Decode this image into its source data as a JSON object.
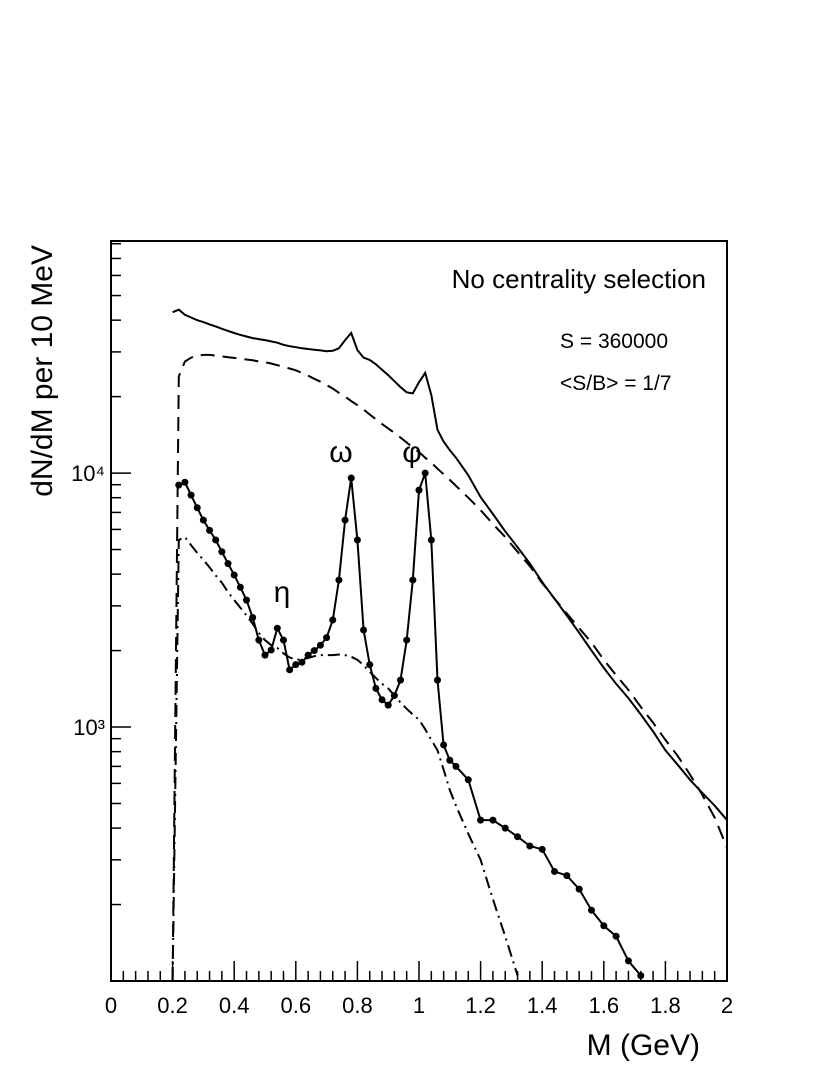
{
  "chart_data": {
    "type": "line",
    "x_label": "M (GeV)",
    "y_label": "dN/dM per 10 MeV",
    "log_y": true,
    "xlim": [
      0,
      2
    ],
    "xticks": [
      0,
      0.2,
      0.4,
      0.6,
      0.8,
      1,
      1.2,
      1.4,
      1.6,
      1.8,
      2
    ],
    "xminor_ticks": [
      0.04,
      0.08,
      0.12,
      0.16,
      0.24,
      0.28,
      0.32,
      0.36,
      0.44,
      0.48,
      0.52,
      0.56,
      0.64,
      0.68,
      0.72,
      0.76,
      0.84,
      0.88,
      0.92,
      0.96,
      1.04,
      1.08,
      1.12,
      1.16,
      1.24,
      1.28,
      1.32,
      1.36,
      1.44,
      1.48,
      1.52,
      1.56,
      1.64,
      1.68,
      1.72,
      1.76,
      1.84,
      1.88,
      1.92,
      1.96
    ],
    "ylim": [
      100,
      82000
    ],
    "yticks": [
      {
        "value": 1000,
        "label": "10³"
      },
      {
        "value": 10000,
        "label": "10⁴"
      }
    ],
    "yminor_ticks": [
      200,
      300,
      400,
      500,
      600,
      700,
      800,
      900,
      2000,
      3000,
      4000,
      5000,
      6000,
      7000,
      8000,
      9000,
      20000,
      30000,
      40000,
      50000,
      60000,
      70000,
      80000
    ],
    "annotations": [
      "No centrality selection",
      "S = 360000",
      "<S/B> = 1/7",
      "η",
      "ω",
      "φ"
    ],
    "x": [
      0.2,
      0.22,
      0.24,
      0.26,
      0.28,
      0.3,
      0.32,
      0.34,
      0.36,
      0.38,
      0.4,
      0.42,
      0.44,
      0.46,
      0.48,
      0.5,
      0.52,
      0.54,
      0.56,
      0.58,
      0.6,
      0.62,
      0.64,
      0.66,
      0.68,
      0.7,
      0.72,
      0.74,
      0.76,
      0.78,
      0.8,
      0.82,
      0.84,
      0.86,
      0.88,
      0.9,
      0.92,
      0.94,
      0.96,
      0.98,
      1.0,
      1.02,
      1.04,
      1.06,
      1.08,
      1.1,
      1.12,
      1.16,
      1.2,
      1.24,
      1.28,
      1.32,
      1.36,
      1.4,
      1.44,
      1.48,
      1.52,
      1.56,
      1.6,
      1.64,
      1.68,
      1.72,
      1.76,
      1.8,
      1.84,
      1.88,
      1.92,
      1.96,
      2.0
    ],
    "series": [
      {
        "color": "#000000",
        "line_style": "solid",
        "markers": false,
        "values": [
          43000,
          44000,
          42000,
          41000,
          40000,
          39300,
          38500,
          37800,
          37000,
          36300,
          35600,
          35000,
          34500,
          34000,
          33700,
          33400,
          33000,
          32600,
          32000,
          31600,
          31300,
          31000,
          30800,
          30600,
          30400,
          30200,
          30300,
          31000,
          33400,
          35600,
          30500,
          28500,
          27900,
          26800,
          25500,
          24300,
          23000,
          21800,
          20800,
          20600,
          22800,
          24800,
          20300,
          14800,
          13300,
          12300,
          11500,
          9800,
          8040,
          6900,
          5900,
          5100,
          4400,
          3720,
          3200,
          2750,
          2350,
          2000,
          1710,
          1480,
          1300,
          1120,
          960,
          810,
          710,
          620,
          550,
          490,
          430
        ]
      },
      {
        "color": "#000000",
        "line_style": "dashed",
        "markers": false,
        "values": [
          100,
          24000,
          27500,
          28500,
          29000,
          29200,
          29200,
          29000,
          28800,
          28600,
          28400,
          28200,
          28000,
          27800,
          27500,
          27300,
          27000,
          26600,
          26200,
          25800,
          25400,
          24800,
          24200,
          23500,
          22900,
          22200,
          21500,
          20700,
          20000,
          19200,
          18500,
          17800,
          17000,
          16300,
          15600,
          15000,
          14400,
          13800,
          13200,
          12600,
          12100,
          11500,
          11000,
          10400,
          9900,
          9400,
          8900,
          8000,
          7150,
          6300,
          5600,
          4900,
          4300,
          3690,
          3200,
          2800,
          2450,
          2150,
          1840,
          1600,
          1400,
          1200,
          1040,
          890,
          770,
          650,
          540,
          440,
          335
        ]
      },
      {
        "color": "#000000",
        "line_style": "solid",
        "markers": true,
        "values": [
          null,
          8970,
          9200,
          8190,
          7300,
          6530,
          5950,
          5450,
          4900,
          4400,
          3970,
          3550,
          3160,
          2700,
          2200,
          1920,
          2010,
          2450,
          2200,
          1680,
          1760,
          1800,
          1920,
          2000,
          2100,
          2250,
          2640,
          3790,
          6530,
          9560,
          5450,
          2410,
          1760,
          1420,
          1280,
          1220,
          1330,
          1530,
          2200,
          3790,
          8570,
          10000,
          5450,
          1530,
          850,
          740,
          700,
          620,
          430,
          430,
          400,
          370,
          340,
          330,
          270,
          260,
          230,
          190,
          165,
          150,
          120,
          105,
          null,
          null,
          null,
          null,
          null,
          null,
          null
        ]
      },
      {
        "color": "#000000",
        "line_style": "dashdot",
        "markers": false,
        "values": [
          100,
          5450,
          5600,
          5200,
          4850,
          4550,
          4250,
          3950,
          3700,
          3400,
          3160,
          2950,
          2750,
          2550,
          2350,
          2200,
          2100,
          2050,
          1950,
          1880,
          1840,
          1850,
          1870,
          1900,
          1920,
          1920,
          1920,
          1930,
          1920,
          1890,
          1840,
          1750,
          1650,
          1560,
          1480,
          1420,
          1330,
          1250,
          1180,
          1120,
          1070,
          980,
          890,
          810,
          680,
          565,
          490,
          380,
          300,
          210,
          150,
          105,
          null,
          null,
          null,
          null,
          null,
          null,
          null,
          null,
          null,
          null,
          null,
          null,
          null,
          null,
          null,
          null,
          null
        ]
      }
    ]
  }
}
